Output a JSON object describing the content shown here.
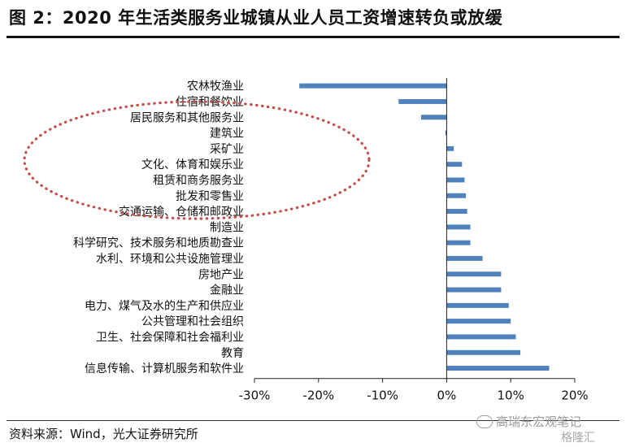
{
  "page": {
    "title": "图 2：2020 年生活类服务业城镇从业人员工资增速转负或放缓",
    "source": "资料来源：Wind，光大证券研究所",
    "watermark": "高瑞东宏观笔记",
    "watermark2": "格隆汇"
  },
  "chart_data": {
    "type": "bar",
    "orientation": "horizontal",
    "categories": [
      "农林牧渔业",
      "住宿和餐饮业",
      "居民服务和其他服务业",
      "建筑业",
      "采矿业",
      "文化、体育和娱乐业",
      "租赁和商务服务业",
      "批发和零售业",
      "交通运输、仓储和邮政业",
      "制造业",
      "科学研究、技术服务和地质勘查业",
      "水利、环境和公共设施管理业",
      "房地产业",
      "金融业",
      "电力、煤气及水的生产和供应业",
      "公共管理和社会组织",
      "卫生、社会保障和社会福利业",
      "教育",
      "信息传输、计算机服务和软件业"
    ],
    "values": [
      -23.0,
      -7.5,
      -4.0,
      -0.2,
      1.1,
      2.4,
      2.8,
      3.0,
      3.2,
      3.7,
      3.7,
      5.6,
      8.5,
      8.5,
      9.7,
      10.0,
      10.8,
      11.5,
      16.0
    ],
    "xlim": [
      -30,
      20
    ],
    "xticks": [
      -30,
      -20,
      -10,
      0,
      10,
      20
    ],
    "xtick_labels": [
      "-30%",
      "-20%",
      "-10%",
      "0%",
      "10%",
      "20%"
    ],
    "bar_color": "#4f81bd",
    "annotation_color": "#c0504d",
    "grid": false
  }
}
